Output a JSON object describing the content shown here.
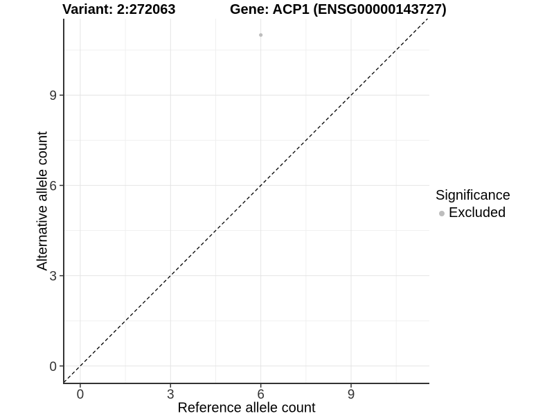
{
  "chart_data": {
    "type": "scatter",
    "title_left": "Variant: 2:272063",
    "title_right": "Gene: ACP1 (ENSG00000143727)",
    "xlabel": "Reference allele count",
    "ylabel": "Alternative allele count",
    "xlim": [
      -0.55,
      11.6
    ],
    "ylim": [
      -0.58,
      11.54
    ],
    "x_ticks": [
      0,
      3,
      6,
      9
    ],
    "y_ticks": [
      0,
      3,
      6,
      9
    ],
    "x_minor_ticks": [
      1.5,
      4.5,
      7.5,
      10.5
    ],
    "y_minor_ticks": [
      1.5,
      4.5,
      7.5,
      10.5
    ],
    "grid": true,
    "points": [
      {
        "x": 6,
        "y": 11,
        "significance": "Excluded"
      }
    ],
    "identity_line": {
      "type": "y=x",
      "style": "dashed",
      "color": "#000000"
    },
    "legend": {
      "position": "right",
      "title": "Significance",
      "entries": [
        {
          "label": "Excluded",
          "color": "#bdbdbd"
        }
      ]
    },
    "colors": {
      "background": "#ffffff",
      "point": "#bdbdbd",
      "grid_major": "#e4e4e4",
      "grid_minor": "#f0f0f0",
      "axis_line": "#333333",
      "tick_text": "#333333",
      "title_text": "#000000"
    }
  }
}
